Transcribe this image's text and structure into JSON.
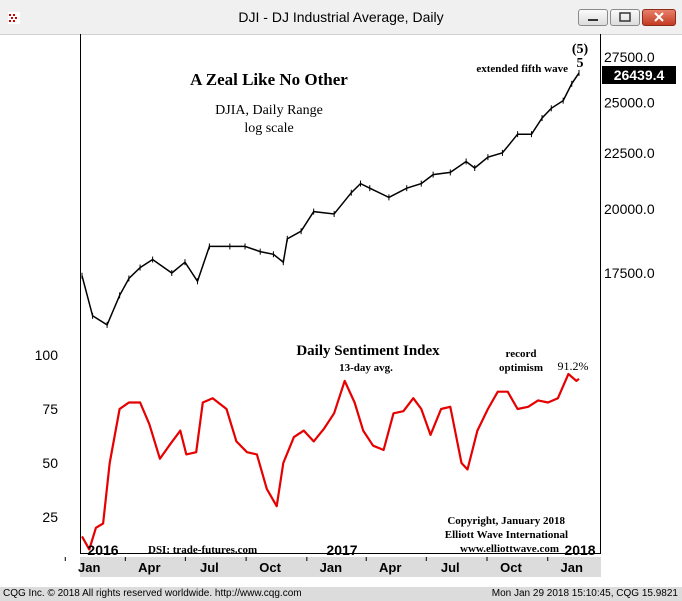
{
  "window": {
    "title": "DJI - DJ Industrial Average, Daily"
  },
  "status_bar": {
    "left": "CQG Inc. © 2018 All rights reserved worldwide. http://www.cqg.com",
    "right": "Mon Jan 29 2018 15:10:45, CQG 15.9821"
  },
  "colors": {
    "price_line": "#000000",
    "sentiment_line": "#e60000",
    "sentiment_title": "#e60000",
    "record_label": "#990099",
    "last_price_bg": "#000000",
    "last_price_text": "#ffffff",
    "axis_strip": "#dcdcdc"
  },
  "annotations": {
    "headline": "A Zeal Like No Other",
    "subtitle1": "DJIA, Daily Range",
    "subtitle2": "log scale",
    "extended_wave": "extended fifth wave",
    "wave_label_circled": "(5)",
    "wave_label": "5",
    "dsi_title": "Daily Sentiment Index",
    "dsi_avg": "13-day avg.",
    "record_line1": "record",
    "record_line2": "optimism",
    "record_value": "91.2%",
    "source": "DSI: trade-futures.com",
    "copyright1": "Copyright, January 2018",
    "copyright2": "Elliott Wave International",
    "copyright3": "www.elliottwave.com"
  },
  "chart_data": [
    {
      "type": "line",
      "title": "DJIA, Daily Range",
      "log_scale": true,
      "last_price": "26439.4",
      "y_ticks": [
        "27500.0",
        "25000.0",
        "22500.0",
        "20000.0",
        "17500.0"
      ],
      "year_labels": [
        "2016",
        "2017",
        "2018"
      ],
      "month_labels": [
        "Jan",
        "Apr",
        "Jul",
        "Oct",
        "Jan",
        "Apr",
        "Jul",
        "Oct",
        "Jan"
      ],
      "x": [
        "2016-01-04",
        "2016-01-20",
        "2016-02-11",
        "2016-03-01",
        "2016-03-15",
        "2016-04-01",
        "2016-04-20",
        "2016-05-19",
        "2016-06-08",
        "2016-06-27",
        "2016-07-15",
        "2016-08-15",
        "2016-09-07",
        "2016-09-30",
        "2016-10-20",
        "2016-11-04",
        "2016-11-10",
        "2016-12-01",
        "2016-12-20",
        "2017-01-20",
        "2017-02-15",
        "2017-03-01",
        "2017-03-15",
        "2017-04-13",
        "2017-05-10",
        "2017-06-01",
        "2017-06-19",
        "2017-07-15",
        "2017-08-08",
        "2017-08-21",
        "2017-09-10",
        "2017-10-02",
        "2017-10-25",
        "2017-11-15",
        "2017-12-01",
        "2017-12-15",
        "2018-01-02",
        "2018-01-15",
        "2018-01-26"
      ],
      "y": [
        17400,
        16000,
        15700,
        16700,
        17300,
        17700,
        18000,
        17500,
        17900,
        17200,
        18500,
        18500,
        18500,
        18300,
        18200,
        17900,
        18800,
        19100,
        19900,
        19800,
        20700,
        21100,
        20900,
        20500,
        20900,
        21100,
        21500,
        21600,
        22100,
        21800,
        22300,
        22500,
        23400,
        23400,
        24200,
        24700,
        25100,
        26000,
        26600
      ],
      "ylim": [
        15000,
        28500
      ]
    },
    {
      "type": "line",
      "title": "Daily Sentiment Index",
      "subtitle": "13-day avg.",
      "y_ticks": [
        "100",
        "75",
        "50",
        "25"
      ],
      "x": [
        "2016-01-04",
        "2016-01-15",
        "2016-01-25",
        "2016-02-05",
        "2016-02-15",
        "2016-03-01",
        "2016-03-15",
        "2016-04-01",
        "2016-04-15",
        "2016-05-01",
        "2016-05-15",
        "2016-06-01",
        "2016-06-10",
        "2016-06-25",
        "2016-07-05",
        "2016-07-20",
        "2016-08-10",
        "2016-08-25",
        "2016-09-10",
        "2016-09-25",
        "2016-10-10",
        "2016-10-25",
        "2016-11-04",
        "2016-11-20",
        "2016-12-05",
        "2016-12-20",
        "2017-01-05",
        "2017-01-20",
        "2017-02-05",
        "2017-02-20",
        "2017-03-05",
        "2017-03-20",
        "2017-04-05",
        "2017-04-20",
        "2017-05-05",
        "2017-05-20",
        "2017-06-01",
        "2017-06-15",
        "2017-07-01",
        "2017-07-15",
        "2017-08-01",
        "2017-08-10",
        "2017-08-25",
        "2017-09-10",
        "2017-09-25",
        "2017-10-10",
        "2017-10-25",
        "2017-11-10",
        "2017-11-25",
        "2017-12-10",
        "2017-12-25",
        "2018-01-10",
        "2018-01-22",
        "2018-01-26"
      ],
      "y": [
        16,
        10,
        20,
        22,
        50,
        75,
        78,
        78,
        68,
        52,
        58,
        65,
        54,
        55,
        78,
        80,
        75,
        60,
        55,
        54,
        38,
        30,
        50,
        62,
        65,
        60,
        66,
        73,
        88,
        78,
        65,
        58,
        56,
        73,
        74,
        80,
        75,
        63,
        75,
        76,
        50,
        47,
        65,
        75,
        83,
        83,
        75,
        76,
        79,
        78,
        80,
        91.2,
        88,
        89
      ],
      "ylim": [
        10,
        100
      ]
    }
  ]
}
